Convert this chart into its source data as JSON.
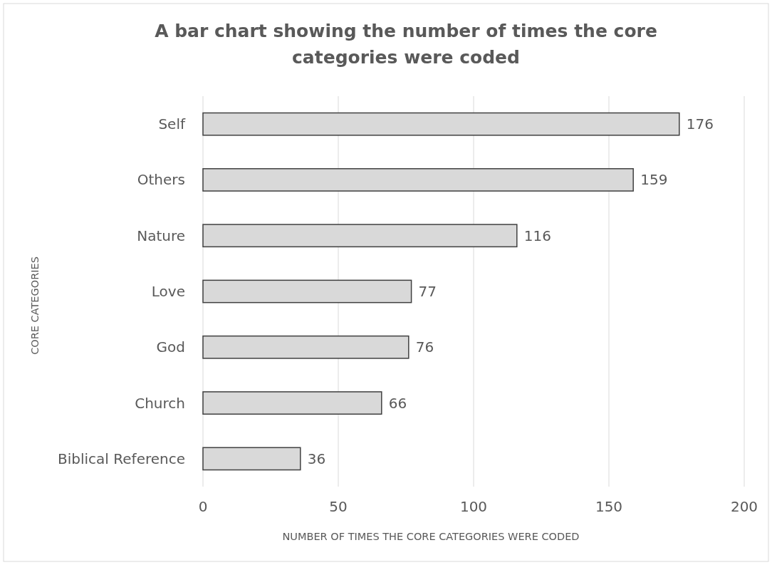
{
  "chart_data": {
    "type": "bar",
    "orientation": "horizontal",
    "title": "A bar chart showing the number of times the core categories were coded",
    "xlabel": "NUMBER OF TIMES THE CORE CATEGORIES WERE CODED",
    "ylabel": "CORE CATEGORIES",
    "categories": [
      "Self",
      "Others",
      "Nature",
      "Love",
      "God",
      "Church",
      "Biblical Reference"
    ],
    "values": [
      176,
      159,
      116,
      77,
      76,
      66,
      36
    ],
    "color": "#d9d9d9",
    "xlim": [
      0,
      200
    ],
    "xticks": [
      0,
      50,
      100,
      150,
      200
    ],
    "grid": "x",
    "data_labels": true
  }
}
